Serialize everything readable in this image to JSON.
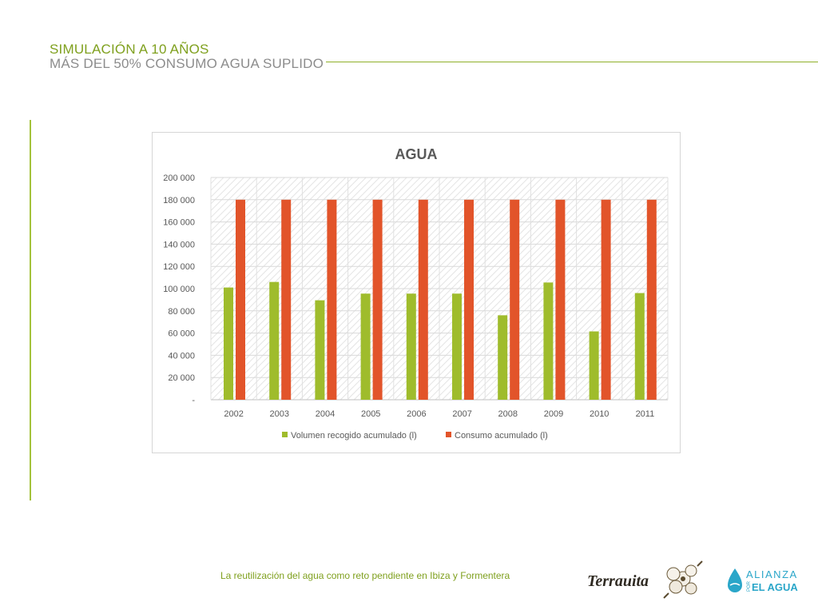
{
  "slide": {
    "title_line1": "SIMULACIÓN A 10 AÑOS",
    "title_line2": "MÁS DEL 50% CONSUMO AGUA SUPLIDO",
    "footer": "La reutilización del agua como reto pendiente en Ibiza y Formentera",
    "logos": {
      "terrauita": "Terrauita",
      "alianza_top": "ALIANZA",
      "alianza_por": "POR",
      "alianza_bottom": "EL AGUA"
    }
  },
  "colors": {
    "accent_green": "#7fa01e",
    "series_green": "#9fbc2c",
    "series_orange": "#e2542a",
    "title_grey": "#8c8c8c",
    "logo_teal": "#2aa6c9"
  },
  "chart_data": {
    "type": "bar",
    "title": "AGUA",
    "categories": [
      "2002",
      "2003",
      "2004",
      "2005",
      "2006",
      "2007",
      "2008",
      "2009",
      "2010",
      "2011"
    ],
    "series": [
      {
        "name": "Volumen recogido acumulado (l)",
        "color": "#9fbc2c",
        "values": [
          101000,
          106000,
          89500,
          95500,
          95500,
          95500,
          76000,
          105500,
          61500,
          96000
        ]
      },
      {
        "name": "Consumo acumulado (l)",
        "color": "#e2542a",
        "values": [
          180000,
          180000,
          180000,
          180000,
          180000,
          180000,
          180000,
          180000,
          180000,
          180000
        ]
      }
    ],
    "ylim": [
      0,
      200000
    ],
    "yticks": [
      0,
      20000,
      40000,
      60000,
      80000,
      100000,
      120000,
      140000,
      160000,
      180000,
      200000
    ],
    "ytick_labels": [
      "-",
      "20 000",
      "40 000",
      "60 000",
      "80 000",
      "100 000",
      "120 000",
      "140 000",
      "160 000",
      "180 000",
      "200 000"
    ],
    "xlabel": "",
    "ylabel": "",
    "grid": true,
    "legend_position": "bottom"
  }
}
